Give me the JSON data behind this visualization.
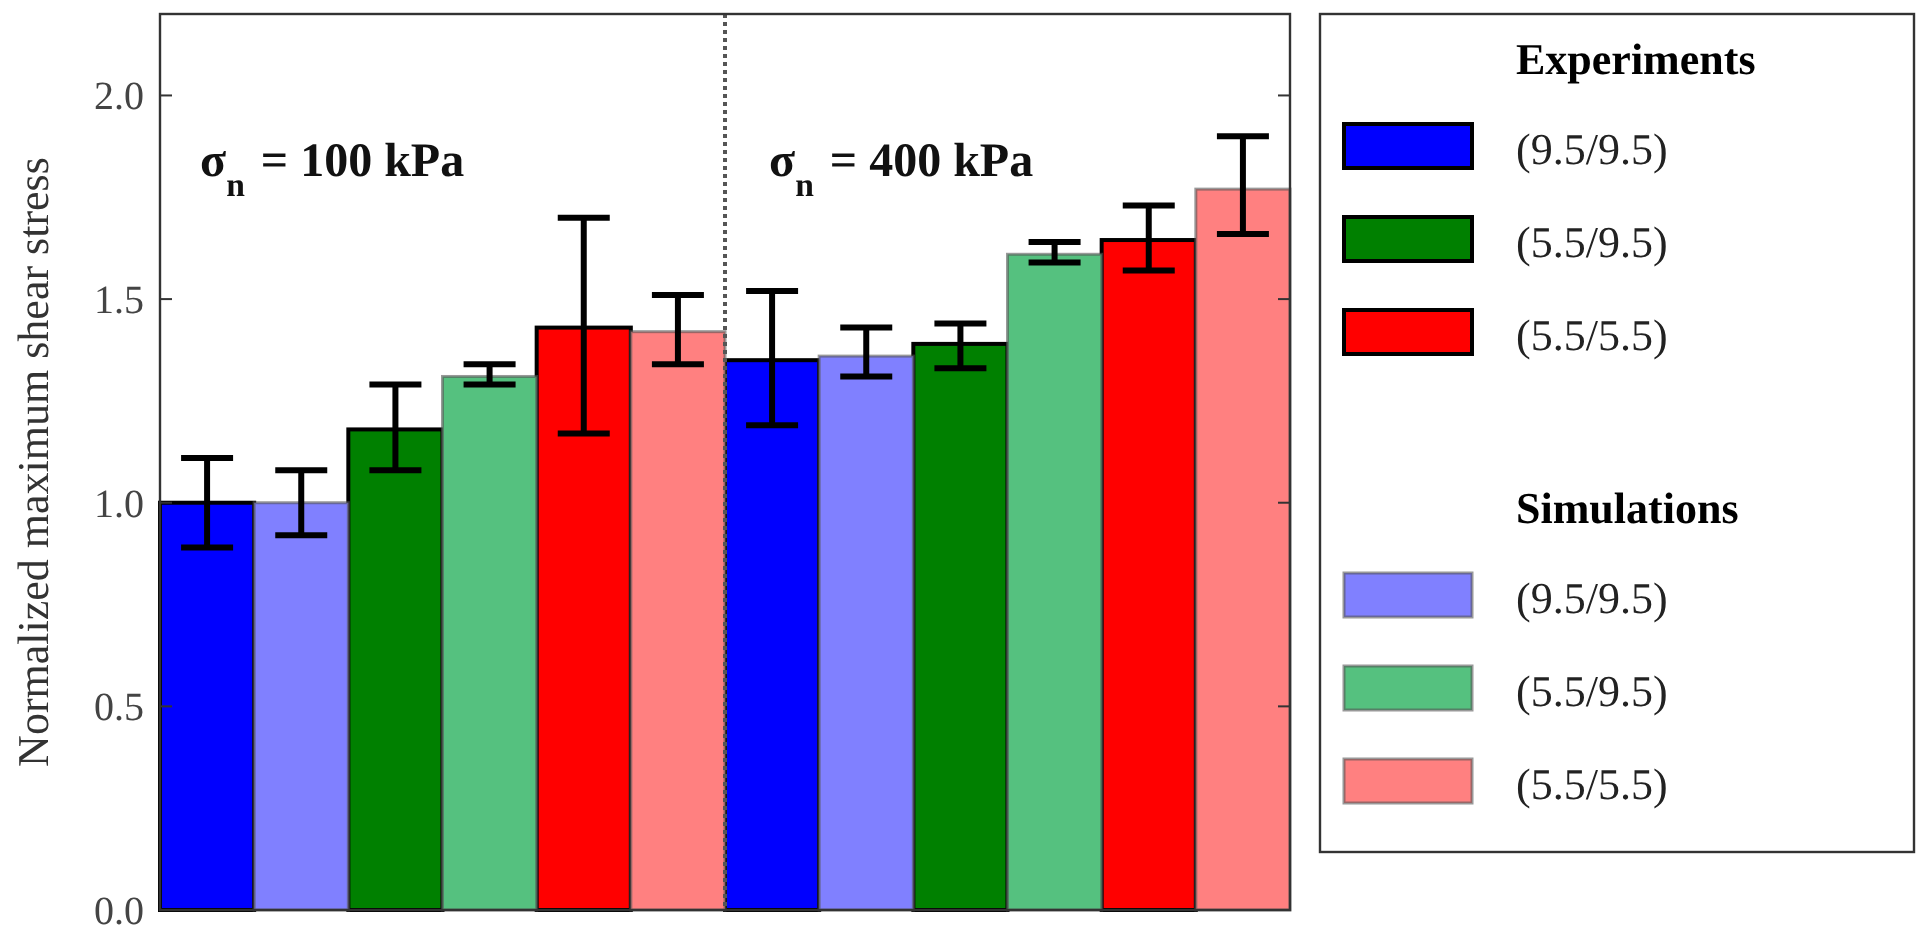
{
  "chart_data": {
    "type": "bar",
    "ylabel": "Normalized maximum shear stress",
    "categories": [
      null,
      null
    ],
    "series": [
      {
        "name": "(9.5/9.5)",
        "color": "#0000ff",
        "values": [
          1.0,
          1.35
        ],
        "errors": [
          [
            0.89,
            1.11
          ],
          [
            1.19,
            1.52
          ]
        ]
      },
      {
        "name": "(5.5/9.5)",
        "color": "#008000",
        "values": [
          1.18,
          1.39
        ],
        "errors": [
          [
            1.08,
            1.29
          ],
          [
            1.33,
            1.44
          ]
        ]
      },
      {
        "name": "(5.5/5.5)",
        "color": "#ff0000",
        "values": [
          1.43,
          1.645
        ],
        "errors": [
          [
            1.17,
            1.7
          ],
          [
            1.57,
            1.73
          ]
        ]
      },
      {
        "name": "(9.5/9.5)",
        "color": "#8080ff",
        "values": [
          1.0,
          1.36
        ],
        "errors": [
          [
            0.92,
            1.08
          ],
          [
            1.31,
            1.43
          ]
        ]
      },
      {
        "name": "(5.5/9.5)",
        "color": "#55c17f",
        "values": [
          1.31,
          1.61
        ],
        "errors": [
          [
            1.29,
            1.34
          ],
          [
            1.59,
            1.64
          ]
        ]
      },
      {
        "name": "(5.5/5.5)",
        "color": "#ff8080",
        "values": [
          1.42,
          1.77
        ],
        "errors": [
          [
            1.34,
            1.51
          ],
          [
            1.66,
            1.9
          ]
        ]
      }
    ],
    "ylim": [
      0,
      2.2
    ],
    "yticks": [
      {
        "value": 0,
        "label": "0.0"
      },
      0.5,
      {
        "value": 1,
        "label": "1.0"
      },
      1.5,
      {
        "value": 2,
        "label": "2.0"
      }
    ],
    "annotations": [
      "σ$_{n}$ = 100 kPa",
      "σ$_{n}$ = 400 kPa",
      "Experiments",
      "Simulations"
    ],
    "legend": "right",
    "grid": false
  }
}
